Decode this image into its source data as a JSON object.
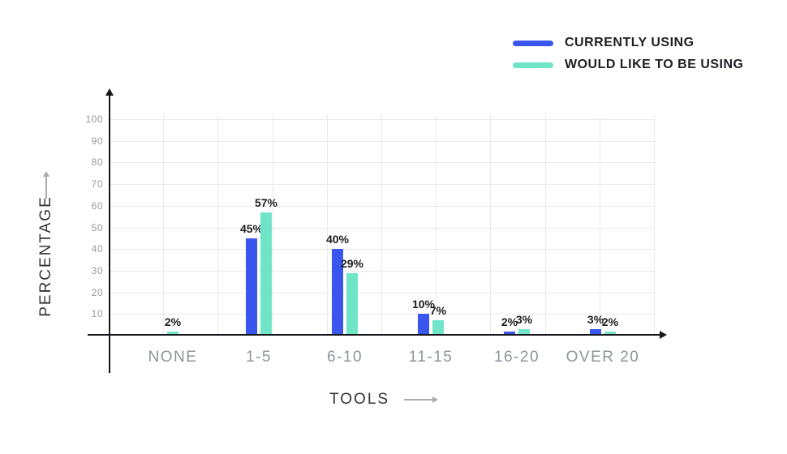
{
  "legend": {
    "items": [
      {
        "label": "CURRENTLY USING",
        "color": "#3B56EE"
      },
      {
        "label": "WOULD LIKE TO BE USING",
        "color": "#6FE4C7"
      }
    ]
  },
  "axes": {
    "y_title": "PERCENTAGE",
    "x_title": "TOOLS",
    "y_ticks": [
      100,
      90,
      80,
      70,
      60,
      50,
      40,
      30,
      20,
      10
    ]
  },
  "chart_data": {
    "type": "bar",
    "categories": [
      "NONE",
      "1-5",
      "6-10",
      "11-15",
      "16-20",
      "OVER 20"
    ],
    "series": [
      {
        "name": "CURRENTLY USING",
        "color": "#3B56EE",
        "values": [
          null,
          45,
          40,
          10,
          2,
          3
        ]
      },
      {
        "name": "WOULD LIKE TO BE USING",
        "color": "#6FE4C7",
        "values": [
          2,
          57,
          29,
          7,
          3,
          2
        ]
      }
    ],
    "title": "",
    "xlabel": "TOOLS",
    "ylabel": "PERCENTAGE",
    "ylim": [
      0,
      100
    ],
    "grid": true,
    "legend_position": "top-right",
    "bar_label_format": "{value}%"
  },
  "colors": {
    "grid_line": "#e9eaec",
    "axis_line": "#17181c",
    "tick_label": "#97999c",
    "category_label": "#8e959b",
    "data_label": "#1d1d20",
    "legend_label": "#1e1e24",
    "axis_title": "#343539",
    "arrow": "#a9abad",
    "background": "#ffffff"
  }
}
